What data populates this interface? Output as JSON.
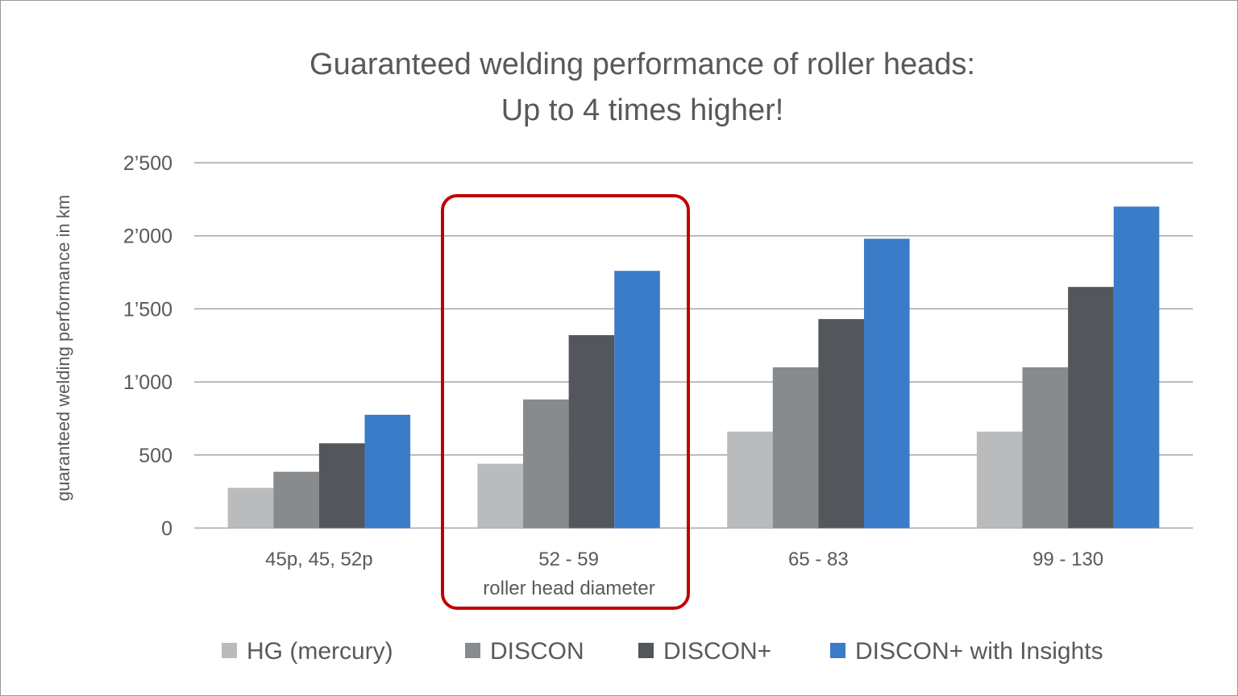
{
  "chart_data": {
    "type": "bar",
    "title": [
      "Guaranteed welding performance of roller heads:",
      "Up to 4 times higher!"
    ],
    "xlabel": "roller head diameter",
    "ylabel": "guaranteed welding performance in km",
    "categories": [
      "45p, 45, 52p",
      "52 - 59",
      "65 - 83",
      "99 - 130"
    ],
    "ylim": [
      0,
      2500
    ],
    "yticks": [
      0,
      500,
      1000,
      1500,
      2000,
      2500
    ],
    "ytick_labels": [
      "0",
      "500",
      "1’000",
      "1’500",
      "2’000",
      "2’500"
    ],
    "grid": true,
    "legend_position": "bottom",
    "highlighted_category": "52 - 59",
    "highlight_color": "#C00000",
    "series": [
      {
        "name": "HG (mercury)",
        "color": "#BABBBD",
        "values": [
          275,
          440,
          660,
          660
        ]
      },
      {
        "name": "DISCON",
        "color": "#888B8D",
        "values": [
          385,
          880,
          1100,
          1100
        ]
      },
      {
        "name": "DISCON+",
        "color": "#53565A",
        "values": [
          580,
          1320,
          1430,
          1650
        ]
      },
      {
        "name": "DISCON+ with Insights",
        "color": "#3B7CC9",
        "values": [
          775,
          1760,
          1980,
          2200
        ]
      }
    ]
  }
}
